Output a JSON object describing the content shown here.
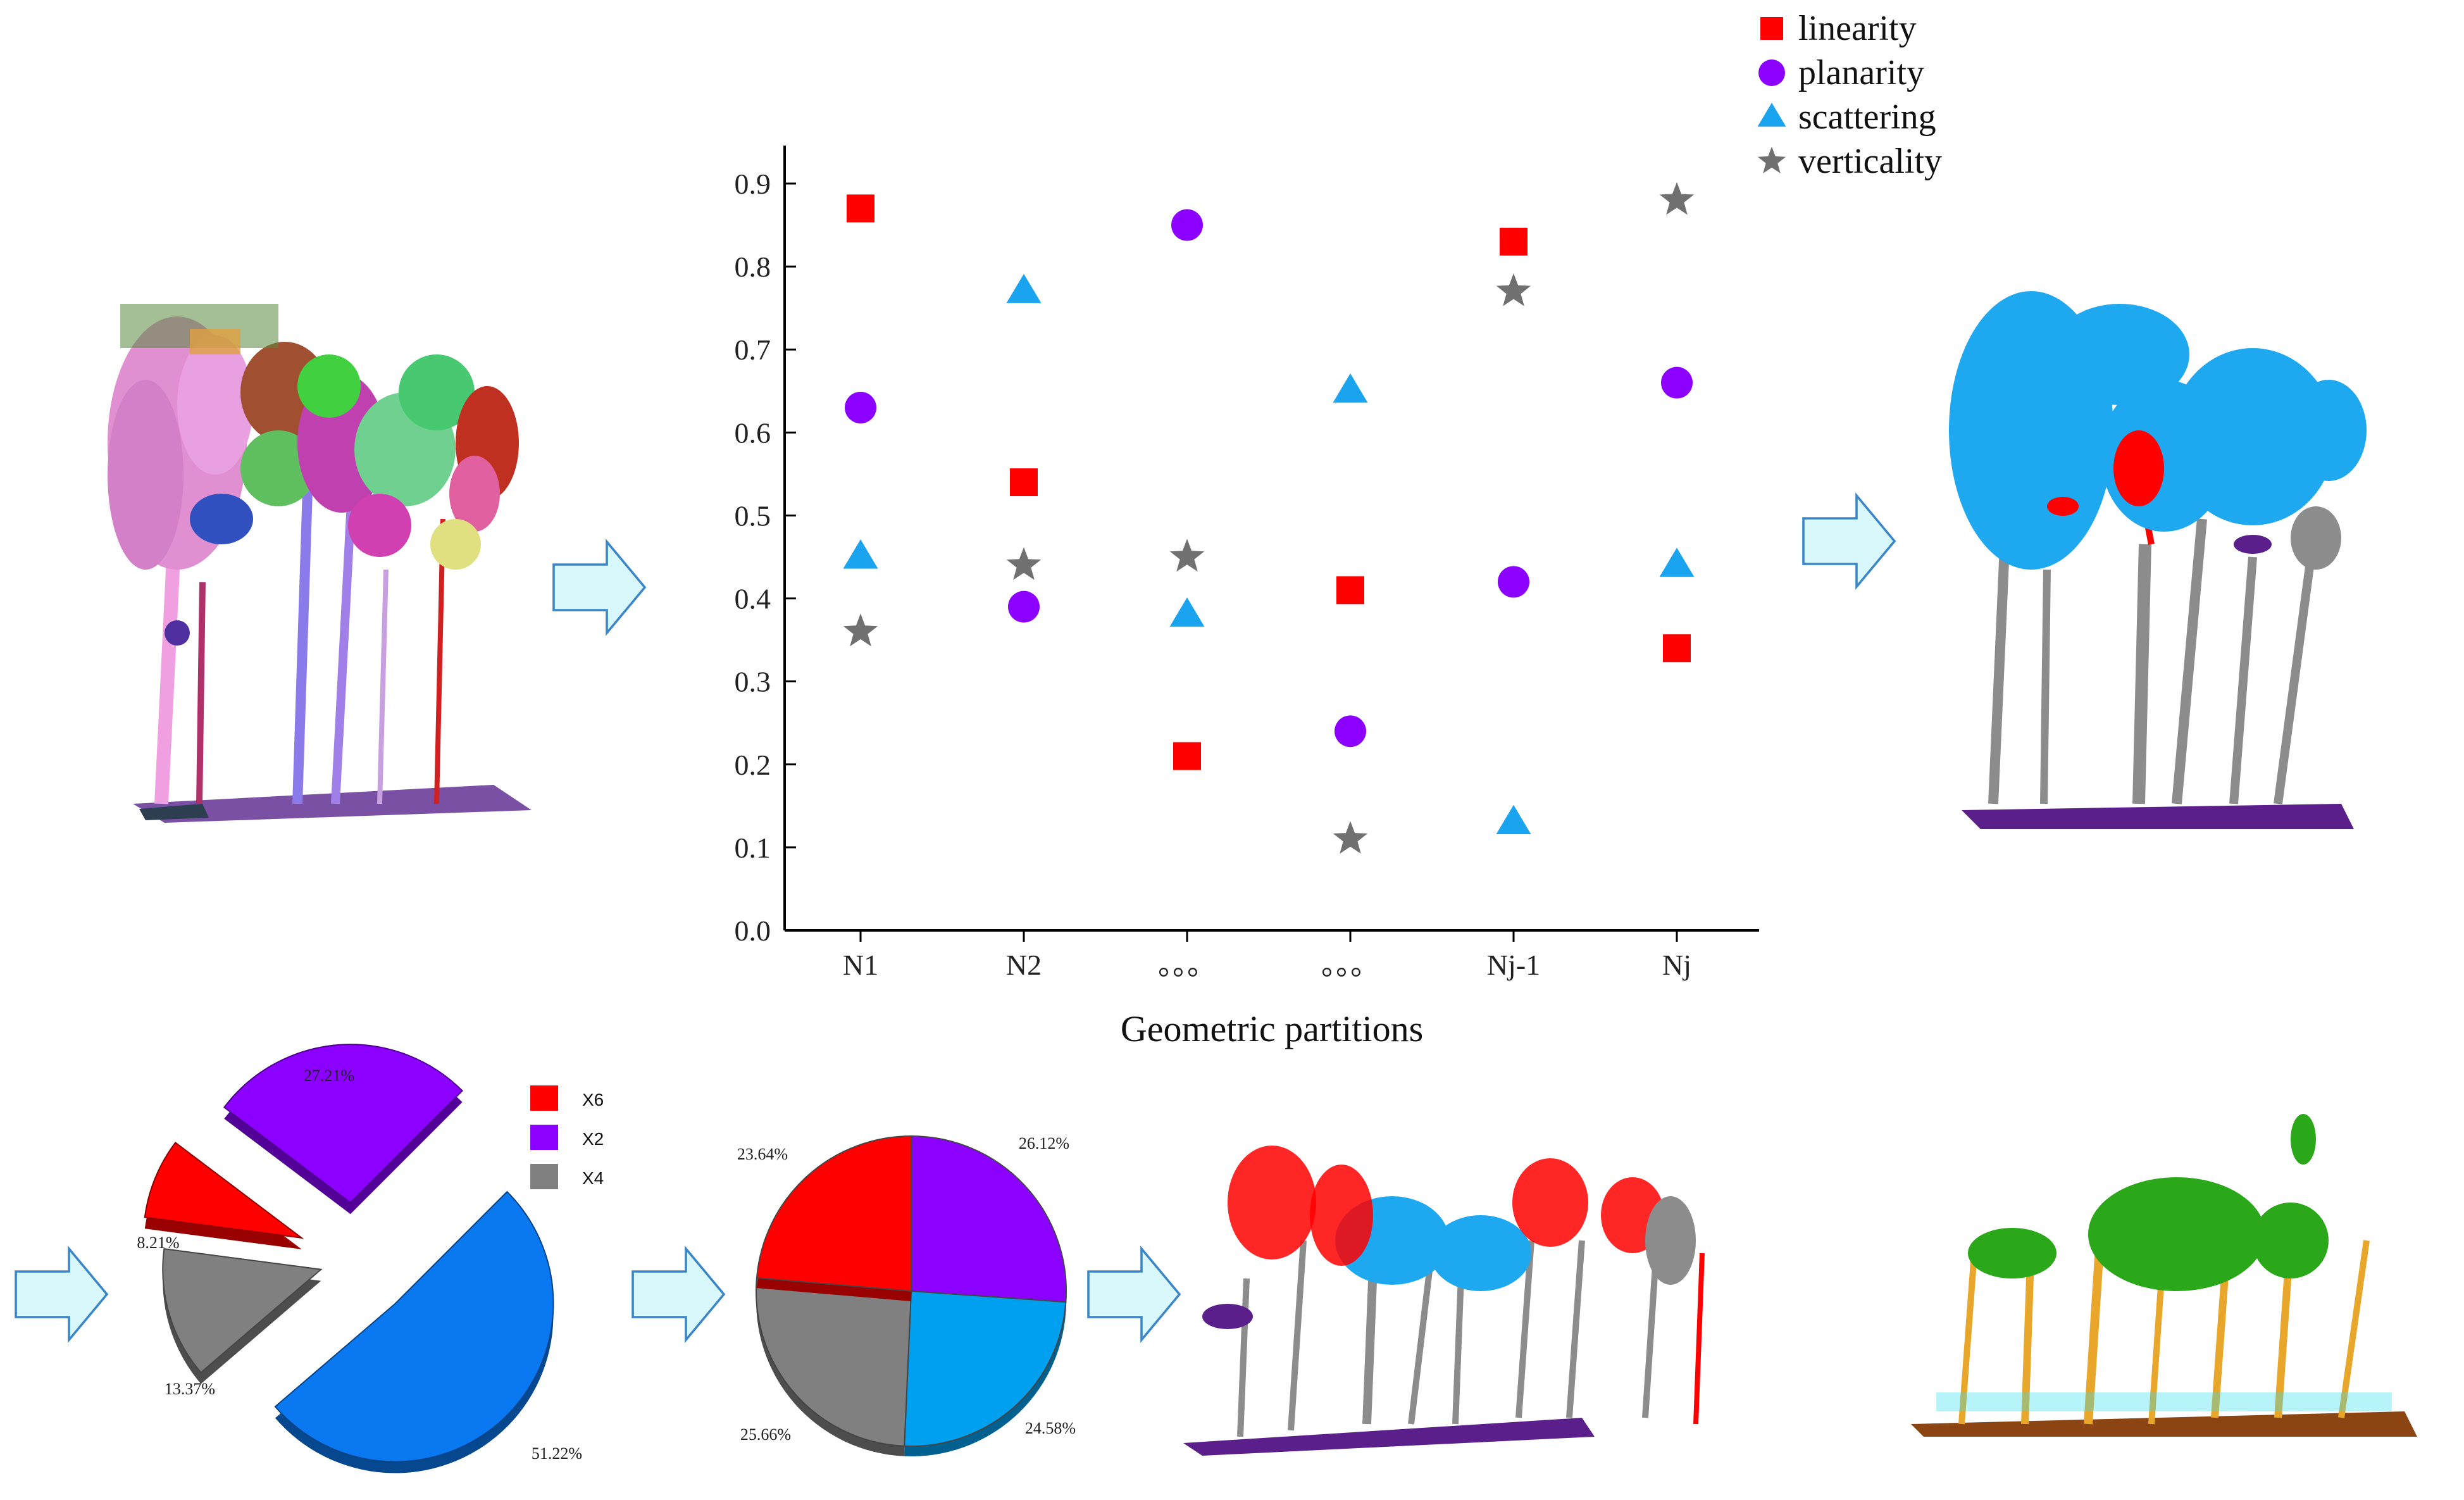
{
  "colors": {
    "linearity": "#ff0000",
    "planarity": "#8b00ff",
    "scattering": "#1aa3ef",
    "verticality": "#707070",
    "arrow_fill": "#d8f8fc",
    "arrow_stroke": "#3a86c8",
    "pie_blue_exploded": "#0a78f0",
    "pie_blue": "#00a0f0",
    "pie_gray": "#808080",
    "pie_red": "#ff0000",
    "pie_purple": "#8b00ff",
    "trunk_gray": "#8c8c8c",
    "canopy_blue": "#1ea8f0",
    "ground_purple": "#5a1f8a",
    "wood_orange": "#e8a62a",
    "leaf_green": "#2aa81a",
    "ground_brown": "#8b4513",
    "cyan_points": "#30e0f0"
  },
  "chart_data": {
    "type": "scatter",
    "categories": [
      "N1",
      "N2",
      "。。。",
      "。。。",
      "Nj-1",
      "Nj"
    ],
    "xlabel": "Geometric partitions",
    "ylabel": "",
    "ylim": [
      0,
      0.9
    ],
    "yticks": [
      "0.0",
      "0.1",
      "0.2",
      "0.3",
      "0.4",
      "0.5",
      "0.6",
      "0.7",
      "0.8",
      "0.9"
    ],
    "legend_position": "top-right",
    "series": [
      {
        "name": "linearity",
        "marker": "square",
        "values": [
          0.87,
          0.54,
          0.21,
          0.41,
          0.83,
          0.34
        ]
      },
      {
        "name": "planarity",
        "marker": "circle",
        "values": [
          0.63,
          0.39,
          0.85,
          0.24,
          0.42,
          0.66
        ]
      },
      {
        "name": "scattering",
        "marker": "triangle",
        "values": [
          0.45,
          0.77,
          0.38,
          0.65,
          0.13,
          0.44
        ]
      },
      {
        "name": "verticality",
        "marker": "star",
        "values": [
          0.36,
          0.44,
          0.45,
          0.11,
          0.77,
          0.88
        ]
      }
    ]
  },
  "pie_exploded": {
    "legend": [
      {
        "label": "X6",
        "color": "#ff0000"
      },
      {
        "label": "X2",
        "color": "#8b00ff"
      },
      {
        "label": "X4",
        "color": "#808080"
      }
    ],
    "slices": [
      {
        "label": "51.22%",
        "value": 51.22,
        "color": "#0a78f0"
      },
      {
        "label": "13.37%",
        "value": 13.37,
        "color": "#808080"
      },
      {
        "label": "8.21%",
        "value": 8.21,
        "color": "#ff0000"
      },
      {
        "label": "27.21%",
        "value": 27.21,
        "color": "#8b00ff"
      }
    ]
  },
  "pie_quarter": {
    "slices": [
      {
        "label": "26.12%",
        "value": 26.12,
        "color": "#8b00ff"
      },
      {
        "label": "24.58%",
        "value": 24.58,
        "color": "#00a0f0"
      },
      {
        "label": "25.66%",
        "value": 25.66,
        "color": "#808080"
      },
      {
        "label": "23.64%",
        "value": 23.64,
        "color": "#ff0000"
      }
    ]
  }
}
